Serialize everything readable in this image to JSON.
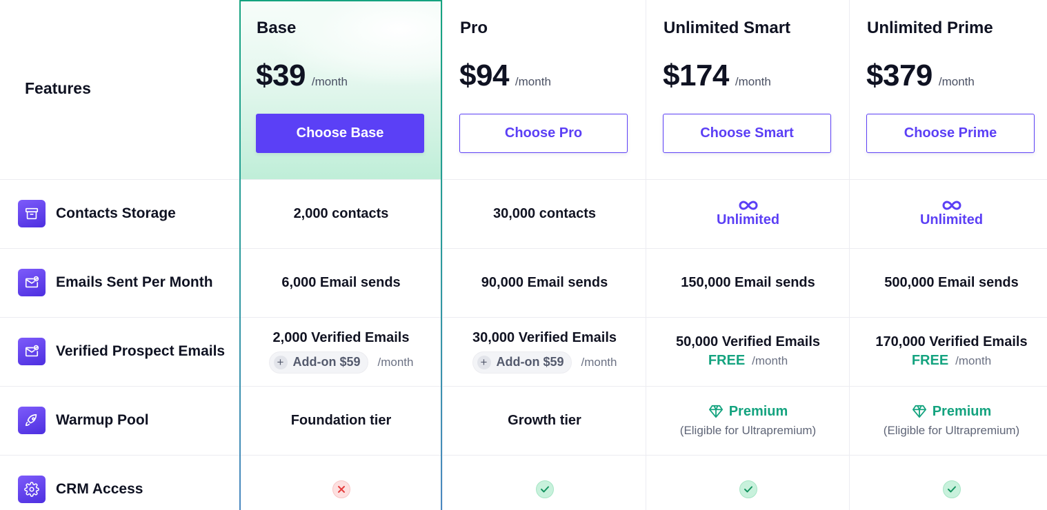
{
  "features_title": "Features",
  "plans": [
    {
      "name": "Base",
      "price": "$39",
      "per": "/month",
      "button": "Choose Base"
    },
    {
      "name": "Pro",
      "price": "$94",
      "per": "/month",
      "button": "Choose Pro"
    },
    {
      "name": "Unlimited Smart",
      "price": "$174",
      "per": "/month",
      "button": "Choose Smart"
    },
    {
      "name": "Unlimited Prime",
      "price": "$379",
      "per": "/month",
      "button": "Choose Prime"
    }
  ],
  "features": [
    {
      "label": "Contacts Storage",
      "icon": "archive-box-icon"
    },
    {
      "label": "Emails Sent Per Month",
      "icon": "mail-check-icon"
    },
    {
      "label": "Verified Prospect Emails",
      "icon": "mail-check-icon"
    },
    {
      "label": "Warmup Pool",
      "icon": "rocket-icon"
    },
    {
      "label": "CRM Access",
      "icon": "gear-icon"
    }
  ],
  "contacts": [
    "2,000 contacts",
    "30,000 contacts",
    "Unlimited",
    "Unlimited"
  ],
  "emails_sent": [
    "6,000 Email sends",
    "90,000 Email sends",
    "150,000 Email sends",
    "500,000 Email sends"
  ],
  "verified": [
    {
      "main": "2,000 Verified Emails",
      "addon": "Add-on $59",
      "per": "/month"
    },
    {
      "main": "30,000 Verified Emails",
      "addon": "Add-on $59",
      "per": "/month"
    },
    {
      "main": "50,000 Verified Emails",
      "free": "FREE",
      "per": "/month"
    },
    {
      "main": "170,000 Verified Emails",
      "free": "FREE",
      "per": "/month"
    }
  ],
  "warmup": [
    {
      "text": "Foundation tier"
    },
    {
      "text": "Growth tier"
    },
    {
      "text": "Premium",
      "note": "(Eligible for Ultrapremium)"
    },
    {
      "text": "Premium",
      "note": "(Eligible for Ultrapremium)"
    }
  ],
  "crm": [
    "no",
    "yes",
    "yes",
    "yes"
  ],
  "colors": {
    "accent": "#5b40f6",
    "green": "#14a37f",
    "no_red": "#e53e3e"
  }
}
